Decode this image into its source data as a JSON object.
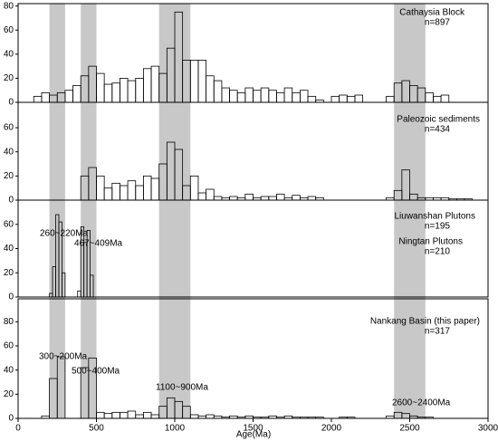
{
  "shared": {
    "xlim": [
      0,
      3000
    ],
    "xticks": [
      0,
      500,
      1000,
      1500,
      2000,
      2500,
      3000
    ],
    "xlabel": "Age(Ma)",
    "shaded_ranges": [
      [
        200,
        300
      ],
      [
        400,
        500
      ],
      [
        900,
        1100
      ],
      [
        2400,
        2600
      ]
    ],
    "shade_color": "#c8c8c8",
    "bar_color": "#000000"
  },
  "chart_data": [
    {
      "type": "histogram",
      "ylim": [
        0,
        82
      ],
      "yticks": [
        0,
        20,
        40,
        60,
        80
      ],
      "labels": [
        "Cathaysia Block",
        "n=897"
      ],
      "annotations": [],
      "bins": [
        100,
        150,
        200,
        250,
        300,
        350,
        400,
        450,
        500,
        550,
        600,
        650,
        700,
        750,
        800,
        850,
        900,
        950,
        1000,
        1050,
        1100,
        1150,
        1200,
        1250,
        1300,
        1350,
        1400,
        1450,
        1500,
        1550,
        1600,
        1650,
        1700,
        1750,
        1800,
        1850,
        1900,
        1950,
        2000,
        2050,
        2100,
        2150,
        2200,
        2250,
        2300,
        2350,
        2400,
        2450,
        2500,
        2550,
        2600,
        2650,
        2700,
        2750
      ],
      "counts": [
        5,
        8,
        6,
        8,
        10,
        14,
        22,
        30,
        24,
        15,
        16,
        20,
        18,
        20,
        28,
        30,
        24,
        45,
        75,
        35,
        35,
        35,
        22,
        18,
        12,
        10,
        8,
        12,
        10,
        12,
        10,
        8,
        12,
        8,
        10,
        5,
        2,
        0,
        5,
        6,
        5,
        6,
        0,
        0,
        0,
        5,
        16,
        18,
        14,
        12,
        8,
        5,
        6
      ]
    },
    {
      "type": "histogram",
      "ylim": [
        0,
        81
      ],
      "yticks": [
        0,
        20,
        40,
        60
      ],
      "labels": [
        "Paleozoic sediments",
        "n=434"
      ],
      "annotations": [],
      "bins": [
        400,
        450,
        500,
        550,
        600,
        650,
        700,
        750,
        800,
        850,
        900,
        950,
        1000,
        1050,
        1100,
        1150,
        1200,
        1250,
        1300,
        1350,
        1400,
        1450,
        1500,
        1550,
        1600,
        1650,
        1700,
        1750,
        1800,
        1850,
        1900,
        1950,
        2000,
        2050,
        2100,
        2150,
        2200,
        2250,
        2300,
        2350,
        2400,
        2450,
        2500,
        2550,
        2600,
        2650,
        2700,
        2750,
        2800,
        2850,
        2900
      ],
      "counts": [
        20,
        27,
        20,
        10,
        14,
        12,
        16,
        12,
        20,
        18,
        30,
        48,
        42,
        12,
        20,
        6,
        9,
        3,
        2,
        3,
        2,
        5,
        2,
        3,
        3,
        5,
        2,
        4,
        2,
        3,
        2,
        0,
        0,
        0,
        0,
        0,
        0,
        0,
        0,
        2,
        8,
        25,
        5,
        2,
        2,
        2,
        2,
        1,
        1,
        1
      ]
    },
    {
      "type": "histogram",
      "ylim": [
        0,
        80
      ],
      "yticks": [
        0,
        20,
        40,
        60
      ],
      "labels": [
        "Liuwanshan Plutons",
        "n=195",
        "Ningtan Plutons",
        "n=210"
      ],
      "annotations": [
        "260~220Ma",
        "467~409Ma"
      ],
      "bins": [
        200,
        220,
        240,
        260,
        280,
        300,
        320,
        340,
        360,
        380,
        400,
        420,
        440,
        460,
        480,
        500
      ],
      "counts": [
        3,
        25,
        68,
        62,
        20,
        0,
        0,
        0,
        0,
        5,
        58,
        45,
        55,
        18,
        0
      ]
    },
    {
      "type": "histogram",
      "ylim": [
        0,
        99
      ],
      "yticks": [
        0,
        20,
        40,
        60,
        80
      ],
      "labels": [
        "Nankang Basin (this paper)",
        "n=317"
      ],
      "annotations": [
        "300~200Ma",
        "500~400Ma",
        "1100~900Ma",
        "2600~2400Ma"
      ],
      "bins": [
        150,
        200,
        250,
        300,
        350,
        400,
        450,
        500,
        550,
        600,
        650,
        700,
        750,
        800,
        850,
        900,
        950,
        1000,
        1050,
        1100,
        1150,
        1200,
        1250,
        1300,
        1350,
        1400,
        1450,
        1500,
        1550,
        1600,
        1650,
        1700,
        1750,
        1800,
        1850,
        1900,
        1950,
        2000,
        2050,
        2100,
        2150,
        2200,
        2250,
        2300,
        2350,
        2400,
        2450,
        2500,
        2550,
        2600,
        2650
      ],
      "counts": [
        2,
        33,
        51,
        0,
        0,
        42,
        50,
        5,
        4,
        5,
        5,
        6,
        3,
        5,
        3,
        10,
        17,
        14,
        10,
        3,
        2,
        3,
        2,
        1,
        2,
        1,
        2,
        1,
        1,
        2,
        1,
        2,
        1,
        1,
        1,
        1,
        0,
        0,
        1,
        1,
        0,
        0,
        0,
        0,
        2,
        5,
        4,
        2,
        1,
        1
      ]
    }
  ]
}
